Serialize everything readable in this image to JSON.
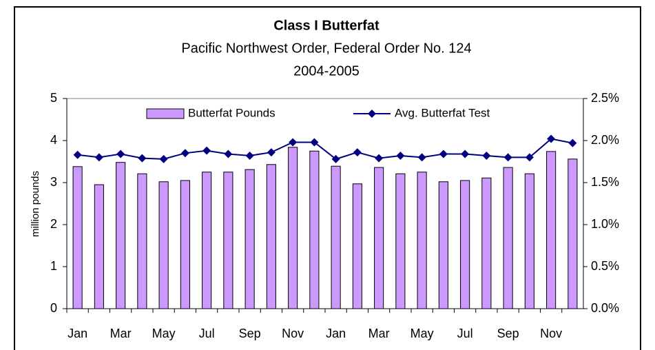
{
  "chart_data": {
    "type": "bar",
    "title": "Class I Butterfat",
    "subtitle": "Pacific Northwest Order, Federal Order No. 124",
    "subtitle2": "2004-2005",
    "ylabel": "million pounds",
    "categories": [
      "Jan",
      null,
      "Mar",
      null,
      "May",
      null,
      "Jul",
      null,
      "Sep",
      null,
      "Nov",
      null,
      "Jan",
      null,
      "Mar",
      null,
      "May",
      null,
      "Jul",
      null,
      "Sep",
      null,
      "Nov",
      null
    ],
    "series": [
      {
        "name": "Butterfat Pounds",
        "type": "bar",
        "color": "#cc99ff",
        "values": [
          3.38,
          2.95,
          3.48,
          3.21,
          3.02,
          3.05,
          3.25,
          3.25,
          3.31,
          3.43,
          3.84,
          3.75,
          3.39,
          2.97,
          3.36,
          3.21,
          3.25,
          3.02,
          3.05,
          3.11,
          3.36,
          3.21,
          3.74,
          3.56
        ]
      },
      {
        "name": "Avg. Butterfat Test",
        "type": "line",
        "axis": "y2",
        "color": "#000080",
        "values": [
          1.83,
          1.8,
          1.84,
          1.79,
          1.78,
          1.85,
          1.88,
          1.84,
          1.82,
          1.86,
          1.98,
          1.98,
          1.78,
          1.86,
          1.79,
          1.82,
          1.8,
          1.84,
          1.84,
          1.82,
          1.8,
          1.8,
          2.02,
          1.97
        ]
      }
    ],
    "ylim": [
      0,
      5
    ],
    "yticks": [
      0,
      1,
      2,
      3,
      4,
      5
    ],
    "y2lim": [
      0,
      2.5
    ],
    "y2ticks": [
      {
        "value": 0,
        "label": "0.0%"
      },
      {
        "value": 0.5,
        "label": "0.5%"
      },
      {
        "value": 1,
        "label": "1.0%"
      },
      {
        "value": 1.5,
        "label": "1.5%"
      },
      {
        "value": 2,
        "label": "2.0%"
      },
      {
        "value": 2.5,
        "label": "2.5%"
      }
    ],
    "grid": false,
    "legend": "top"
  }
}
